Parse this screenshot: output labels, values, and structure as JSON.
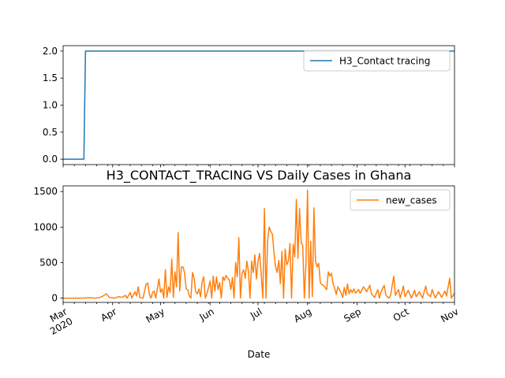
{
  "chart_data": [
    {
      "type": "line",
      "title": "",
      "xlabel": "",
      "ylabel": "",
      "x_range": [
        "2020-03-01",
        "2020-11-01"
      ],
      "ylim": [
        -0.1,
        2.1
      ],
      "y_ticks": [
        "0.0",
        "0.5",
        "1.0",
        "1.5",
        "2.0"
      ],
      "grid": false,
      "legend_placement": "upper right",
      "series": [
        {
          "name": "H3_Contact tracing",
          "color": "#1f77b4",
          "points": [
            [
              "2020-03-01",
              0
            ],
            [
              "2020-03-14",
              0
            ],
            [
              "2020-03-15",
              2
            ],
            [
              "2020-11-01",
              2
            ]
          ]
        }
      ]
    },
    {
      "type": "line",
      "title": "H3_CONTACT_TRACING VS Daily Cases in Ghana",
      "xlabel": "Date",
      "ylabel": "",
      "x_range": [
        "2020-03-01",
        "2020-11-01"
      ],
      "ylim": [
        -60,
        1580
      ],
      "y_ticks": [
        "0",
        "500",
        "1000",
        "1500"
      ],
      "x_ticks": [
        {
          "date": "2020-03-01",
          "label": "Mar\n2020"
        },
        {
          "date": "2020-04-01",
          "label": "Apr"
        },
        {
          "date": "2020-05-01",
          "label": "May"
        },
        {
          "date": "2020-06-01",
          "label": "Jun"
        },
        {
          "date": "2020-07-01",
          "label": "Jul"
        },
        {
          "date": "2020-08-01",
          "label": "Aug"
        },
        {
          "date": "2020-09-01",
          "label": "Sep"
        },
        {
          "date": "2020-10-01",
          "label": "Oct"
        },
        {
          "date": "2020-11-01",
          "label": "Nov"
        }
      ],
      "grid": false,
      "legend_placement": "upper right",
      "series": [
        {
          "name": "new_cases",
          "color": "#ff7f0e",
          "points": [
            [
              "2020-03-01",
              0
            ],
            [
              "2020-03-12",
              0
            ],
            [
              "2020-03-18",
              5
            ],
            [
              "2020-03-21",
              0
            ],
            [
              "2020-03-24",
              10
            ],
            [
              "2020-03-26",
              30
            ],
            [
              "2020-03-28",
              60
            ],
            [
              "2020-03-30",
              10
            ],
            [
              "2020-04-02",
              0
            ],
            [
              "2020-04-05",
              20
            ],
            [
              "2020-04-07",
              10
            ],
            [
              "2020-04-09",
              40
            ],
            [
              "2020-04-10",
              0
            ],
            [
              "2020-04-12",
              80
            ],
            [
              "2020-04-13",
              0
            ],
            [
              "2020-04-15",
              90
            ],
            [
              "2020-04-16",
              30
            ],
            [
              "2020-04-17",
              160
            ],
            [
              "2020-04-18",
              10
            ],
            [
              "2020-04-20",
              0
            ],
            [
              "2020-04-22",
              200
            ],
            [
              "2020-04-23",
              210
            ],
            [
              "2020-04-24",
              50
            ],
            [
              "2020-04-25",
              0
            ],
            [
              "2020-04-26",
              80
            ],
            [
              "2020-04-27",
              100
            ],
            [
              "2020-04-28",
              0
            ],
            [
              "2020-04-29",
              130
            ],
            [
              "2020-04-30",
              270
            ],
            [
              "2020-05-01",
              80
            ],
            [
              "2020-05-02",
              130
            ],
            [
              "2020-05-03",
              0
            ],
            [
              "2020-05-04",
              400
            ],
            [
              "2020-05-05",
              10
            ],
            [
              "2020-05-06",
              160
            ],
            [
              "2020-05-07",
              80
            ],
            [
              "2020-05-08",
              550
            ],
            [
              "2020-05-09",
              10
            ],
            [
              "2020-05-10",
              370
            ],
            [
              "2020-05-11",
              160
            ],
            [
              "2020-05-12",
              920
            ],
            [
              "2020-05-13",
              100
            ],
            [
              "2020-05-14",
              440
            ],
            [
              "2020-05-15",
              440
            ],
            [
              "2020-05-16",
              360
            ],
            [
              "2020-05-17",
              130
            ],
            [
              "2020-05-18",
              120
            ],
            [
              "2020-05-19",
              30
            ],
            [
              "2020-05-20",
              0
            ],
            [
              "2020-05-21",
              360
            ],
            [
              "2020-05-22",
              280
            ],
            [
              "2020-05-23",
              90
            ],
            [
              "2020-05-24",
              60
            ],
            [
              "2020-05-25",
              130
            ],
            [
              "2020-05-26",
              20
            ],
            [
              "2020-05-27",
              230
            ],
            [
              "2020-05-28",
              300
            ],
            [
              "2020-05-29",
              0
            ],
            [
              "2020-05-30",
              60
            ],
            [
              "2020-06-01",
              240
            ],
            [
              "2020-06-02",
              0
            ],
            [
              "2020-06-03",
              310
            ],
            [
              "2020-06-04",
              100
            ],
            [
              "2020-06-05",
              300
            ],
            [
              "2020-06-06",
              120
            ],
            [
              "2020-06-07",
              220
            ],
            [
              "2020-06-08",
              0
            ],
            [
              "2020-06-09",
              300
            ],
            [
              "2020-06-10",
              250
            ],
            [
              "2020-06-11",
              320
            ],
            [
              "2020-06-12",
              280
            ],
            [
              "2020-06-13",
              260
            ],
            [
              "2020-06-14",
              120
            ],
            [
              "2020-06-15",
              290
            ],
            [
              "2020-06-16",
              0
            ],
            [
              "2020-06-17",
              500
            ],
            [
              "2020-06-18",
              300
            ],
            [
              "2020-06-19",
              850
            ],
            [
              "2020-06-20",
              0
            ],
            [
              "2020-06-21",
              350
            ],
            [
              "2020-06-22",
              400
            ],
            [
              "2020-06-23",
              280
            ],
            [
              "2020-06-24",
              520
            ],
            [
              "2020-06-25",
              380
            ],
            [
              "2020-06-26",
              0
            ],
            [
              "2020-06-27",
              520
            ],
            [
              "2020-06-28",
              360
            ],
            [
              "2020-06-29",
              610
            ],
            [
              "2020-06-30",
              270
            ],
            [
              "2020-07-01",
              520
            ],
            [
              "2020-07-02",
              630
            ],
            [
              "2020-07-03",
              330
            ],
            [
              "2020-07-04",
              0
            ],
            [
              "2020-07-05",
              1260
            ],
            [
              "2020-07-06",
              0
            ],
            [
              "2020-07-07",
              800
            ],
            [
              "2020-07-08",
              1000
            ],
            [
              "2020-07-09",
              940
            ],
            [
              "2020-07-10",
              900
            ],
            [
              "2020-07-11",
              640
            ],
            [
              "2020-07-12",
              440
            ],
            [
              "2020-07-13",
              360
            ],
            [
              "2020-07-14",
              530
            ],
            [
              "2020-07-15",
              200
            ],
            [
              "2020-07-16",
              660
            ],
            [
              "2020-07-17",
              0
            ],
            [
              "2020-07-18",
              690
            ],
            [
              "2020-07-19",
              470
            ],
            [
              "2020-07-20",
              520
            ],
            [
              "2020-07-21",
              770
            ],
            [
              "2020-07-22",
              0
            ],
            [
              "2020-07-23",
              760
            ],
            [
              "2020-07-24",
              580
            ],
            [
              "2020-07-25",
              1390
            ],
            [
              "2020-07-26",
              560
            ],
            [
              "2020-07-27",
              1260
            ],
            [
              "2020-07-28",
              780
            ],
            [
              "2020-07-29",
              740
            ],
            [
              "2020-07-30",
              0
            ],
            [
              "2020-07-31",
              480
            ],
            [
              "2020-08-01",
              1520
            ],
            [
              "2020-08-02",
              0
            ],
            [
              "2020-08-03",
              800
            ],
            [
              "2020-08-04",
              20
            ],
            [
              "2020-08-05",
              1270
            ],
            [
              "2020-08-06",
              520
            ],
            [
              "2020-08-07",
              440
            ],
            [
              "2020-08-08",
              490
            ],
            [
              "2020-08-09",
              220
            ],
            [
              "2020-08-10",
              190
            ],
            [
              "2020-08-11",
              180
            ],
            [
              "2020-08-12",
              150
            ],
            [
              "2020-08-13",
              120
            ],
            [
              "2020-08-14",
              370
            ],
            [
              "2020-08-15",
              310
            ],
            [
              "2020-08-16",
              350
            ],
            [
              "2020-08-17",
              200
            ],
            [
              "2020-08-18",
              140
            ],
            [
              "2020-08-19",
              50
            ],
            [
              "2020-08-20",
              160
            ],
            [
              "2020-08-21",
              120
            ],
            [
              "2020-08-22",
              70
            ],
            [
              "2020-08-23",
              10
            ],
            [
              "2020-08-24",
              150
            ],
            [
              "2020-08-25",
              40
            ],
            [
              "2020-08-26",
              200
            ],
            [
              "2020-08-27",
              60
            ],
            [
              "2020-08-28",
              120
            ],
            [
              "2020-08-29",
              80
            ],
            [
              "2020-08-30",
              130
            ],
            [
              "2020-08-31",
              70
            ],
            [
              "2020-09-02",
              120
            ],
            [
              "2020-09-03",
              70
            ],
            [
              "2020-09-05",
              160
            ],
            [
              "2020-09-07",
              90
            ],
            [
              "2020-09-09",
              180
            ],
            [
              "2020-09-10",
              60
            ],
            [
              "2020-09-12",
              10
            ],
            [
              "2020-09-14",
              120
            ],
            [
              "2020-09-15",
              0
            ],
            [
              "2020-09-16",
              90
            ],
            [
              "2020-09-18",
              180
            ],
            [
              "2020-09-19",
              40
            ],
            [
              "2020-09-21",
              0
            ],
            [
              "2020-09-22",
              40
            ],
            [
              "2020-09-24",
              310
            ],
            [
              "2020-09-25",
              40
            ],
            [
              "2020-09-27",
              120
            ],
            [
              "2020-09-28",
              0
            ],
            [
              "2020-09-30",
              170
            ],
            [
              "2020-10-01",
              20
            ],
            [
              "2020-10-03",
              110
            ],
            [
              "2020-10-05",
              0
            ],
            [
              "2020-10-07",
              110
            ],
            [
              "2020-10-08",
              20
            ],
            [
              "2020-10-10",
              90
            ],
            [
              "2020-10-12",
              0
            ],
            [
              "2020-10-14",
              170
            ],
            [
              "2020-10-15",
              60
            ],
            [
              "2020-10-17",
              20
            ],
            [
              "2020-10-18",
              120
            ],
            [
              "2020-10-20",
              0
            ],
            [
              "2020-10-22",
              90
            ],
            [
              "2020-10-24",
              10
            ],
            [
              "2020-10-26",
              100
            ],
            [
              "2020-10-27",
              30
            ],
            [
              "2020-10-29",
              280
            ],
            [
              "2020-10-30",
              0
            ],
            [
              "2020-11-01",
              70
            ]
          ]
        }
      ]
    }
  ]
}
